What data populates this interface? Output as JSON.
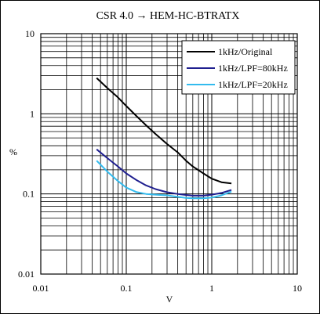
{
  "chart_data": {
    "type": "line",
    "title": "CSR 4.0 → HEM-HC-BTRATX",
    "xlabel": "V",
    "ylabel": "%",
    "x_scale": "log",
    "y_scale": "log",
    "xlim": [
      0.01,
      10
    ],
    "ylim": [
      0.01,
      10
    ],
    "x_ticks": [
      "0.01",
      "0.1",
      "1",
      "10"
    ],
    "y_ticks": [
      "10",
      "1",
      "0.1",
      "0.01"
    ],
    "grid": true,
    "legend_position": "top-right",
    "series": [
      {
        "name": "1kHz/Original",
        "color": "#000000",
        "x": [
          0.045,
          0.06,
          0.08,
          0.1,
          0.13,
          0.17,
          0.22,
          0.3,
          0.4,
          0.5,
          0.6,
          0.8,
          1.0,
          1.3,
          1.7
        ],
        "y": [
          2.8,
          2.1,
          1.6,
          1.25,
          0.95,
          0.72,
          0.56,
          0.42,
          0.33,
          0.26,
          0.22,
          0.18,
          0.155,
          0.14,
          0.135
        ]
      },
      {
        "name": "1kHz/LPF=80kHz",
        "color": "#1f1f8f",
        "x": [
          0.045,
          0.06,
          0.08,
          0.1,
          0.13,
          0.17,
          0.22,
          0.3,
          0.4,
          0.5,
          0.6,
          0.8,
          1.0,
          1.3,
          1.7
        ],
        "y": [
          0.36,
          0.28,
          0.22,
          0.18,
          0.15,
          0.128,
          0.115,
          0.105,
          0.1,
          0.097,
          0.095,
          0.095,
          0.098,
          0.103,
          0.112
        ]
      },
      {
        "name": "1kHz/LPF=20kHz",
        "color": "#33bbee",
        "x": [
          0.045,
          0.06,
          0.08,
          0.1,
          0.13,
          0.17,
          0.22,
          0.3,
          0.4,
          0.5,
          0.6,
          0.8,
          1.0,
          1.3,
          1.7
        ],
        "y": [
          0.26,
          0.19,
          0.145,
          0.12,
          0.106,
          0.1,
          0.098,
          0.096,
          0.092,
          0.089,
          0.088,
          0.088,
          0.09,
          0.096,
          0.107
        ]
      }
    ]
  }
}
